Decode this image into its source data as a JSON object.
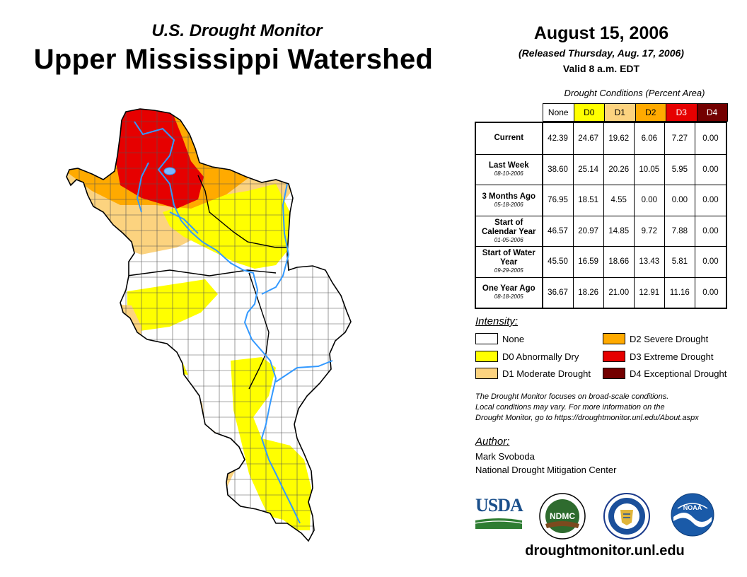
{
  "header": {
    "subtitle": "U.S. Drought Monitor",
    "title": "Upper Mississippi Watershed",
    "date": "August 15, 2006",
    "released": "(Released Thursday, Aug. 17, 2006)",
    "valid": "Valid 8 a.m. EDT"
  },
  "table": {
    "caption": "Drought Conditions (Percent Area)",
    "columns": [
      {
        "label": "None",
        "color": "#ffffff",
        "text_color": "#000000"
      },
      {
        "label": "D0",
        "color": "#ffff00",
        "text_color": "#000000"
      },
      {
        "label": "D1",
        "color": "#fcd37f",
        "text_color": "#000000"
      },
      {
        "label": "D2",
        "color": "#ffaa00",
        "text_color": "#000000"
      },
      {
        "label": "D3",
        "color": "#e60000",
        "text_color": "#ffffff"
      },
      {
        "label": "D4",
        "color": "#730000",
        "text_color": "#ffffff"
      }
    ],
    "rows": [
      {
        "label": "Current",
        "sub": "",
        "values": [
          "42.39",
          "24.67",
          "19.62",
          "6.06",
          "7.27",
          "0.00"
        ]
      },
      {
        "label": "Last Week",
        "sub": "08-10-2006",
        "values": [
          "38.60",
          "25.14",
          "20.26",
          "10.05",
          "5.95",
          "0.00"
        ]
      },
      {
        "label": "3 Months Ago",
        "sub": "05-18-2006",
        "values": [
          "76.95",
          "18.51",
          "4.55",
          "0.00",
          "0.00",
          "0.00"
        ]
      },
      {
        "label": "Start of Calendar Year",
        "sub": "01-05-2006",
        "values": [
          "46.57",
          "20.97",
          "14.85",
          "9.72",
          "7.88",
          "0.00"
        ]
      },
      {
        "label": "Start of Water Year",
        "sub": "09-29-2005",
        "values": [
          "45.50",
          "16.59",
          "18.66",
          "13.43",
          "5.81",
          "0.00"
        ]
      },
      {
        "label": "One Year Ago",
        "sub": "08-18-2005",
        "values": [
          "36.67",
          "18.26",
          "21.00",
          "12.91",
          "11.16",
          "0.00"
        ]
      }
    ]
  },
  "legend": {
    "title": "Intensity:",
    "items": [
      {
        "label": "None",
        "color": "#ffffff"
      },
      {
        "label": "D0 Abnormally Dry",
        "color": "#ffff00"
      },
      {
        "label": "D1 Moderate Drought",
        "color": "#fcd37f"
      },
      {
        "label": "D2 Severe Drought",
        "color": "#ffaa00"
      },
      {
        "label": "D3 Extreme Drought",
        "color": "#e60000"
      },
      {
        "label": "D4 Exceptional Drought",
        "color": "#730000"
      }
    ]
  },
  "note": {
    "line1": "The Drought Monitor focuses on broad-scale conditions.",
    "line2": "Local conditions may vary. For more information on the",
    "line3": "Drought Monitor, go to https://droughtmonitor.unl.edu/About.aspx"
  },
  "author": {
    "heading": "Author:",
    "name": "Mark Svoboda",
    "org": "National Drought Mitigation Center"
  },
  "logos": {
    "usda": "USDA",
    "ndmc": "NDMC",
    "noaa": "NOAA"
  },
  "website": "droughtmonitor.unl.edu",
  "colors": {
    "river": "#3399ff",
    "county_line": "#555555"
  }
}
